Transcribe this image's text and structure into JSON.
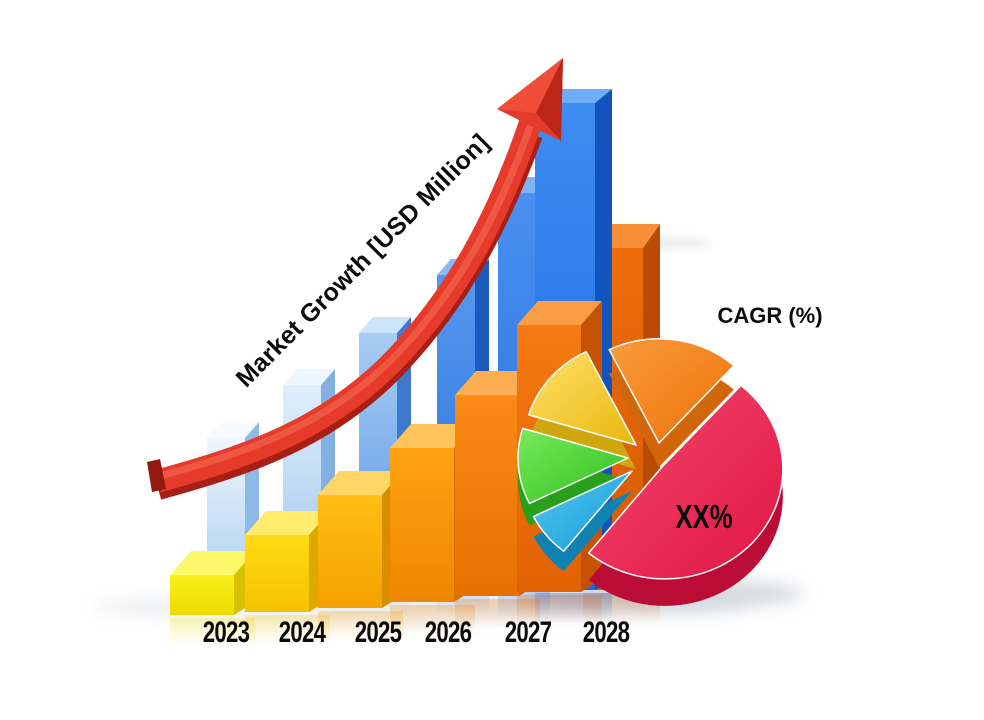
{
  "arrow": {
    "title": "Market Growth [USD Million]",
    "color_main": "#e63b2b",
    "color_dark": "#a81f15",
    "color_sheen": "#f0604a",
    "color_head_dark": "#bb2619",
    "color_head_light": "#ef4f38",
    "color_cap": "#93180f"
  },
  "pie": {
    "heading": "CAGR (%)",
    "center_label": "XX%"
  },
  "axis_years": [
    "2023",
    "2024",
    "2025",
    "2026",
    "2027",
    "2028"
  ],
  "palette": {
    "back_bars": [
      {
        "front": [
          "#eef6fd",
          "#b5d4f1"
        ],
        "side": "#8fb9e6",
        "top": "#f6fbff"
      },
      {
        "front": [
          "#e0eefb",
          "#a6c9ef"
        ],
        "side": "#83b0e2",
        "top": "#eef7fe"
      },
      {
        "front": [
          "#a8cdf4",
          "#5b97e4"
        ],
        "side": "#4079cc",
        "top": "#cde5fb"
      },
      {
        "front": [
          "#5598ee",
          "#2a71dc"
        ],
        "side": "#1d5abe",
        "top": "#8abaf5"
      },
      {
        "front": [
          "#4a90ef",
          "#2270e2"
        ],
        "side": "#1a58c0",
        "top": "#7fb3f6"
      },
      {
        "front": [
          "#3f8cf2",
          "#1b66dd"
        ],
        "side": "#1254bd",
        "top": "#6fadf7"
      }
    ],
    "front_bars": [
      {
        "front": [
          "#faf01c",
          "#efda00"
        ],
        "side": "#d8c100",
        "top": "#fdf76a"
      },
      {
        "front": [
          "#ffdb13",
          "#f6c200"
        ],
        "side": "#dda800",
        "top": "#ffeb6e"
      },
      {
        "front": [
          "#ffbf14",
          "#f4a100"
        ],
        "side": "#d98d00",
        "top": "#ffd666"
      },
      {
        "front": [
          "#ffa312",
          "#ef8600"
        ],
        "side": "#d47200",
        "top": "#ffc35c"
      },
      {
        "front": [
          "#fb8a16",
          "#e87000"
        ],
        "side": "#cd5f03",
        "top": "#fdae52"
      },
      {
        "front": [
          "#f67a12",
          "#e06100"
        ],
        "side": "#c65303",
        "top": "#f99e44"
      }
    ],
    "extra_bar": {
      "front": [
        "#ef6c0b",
        "#d55a02"
      ],
      "side": "#b84c02",
      "top": "#f68f38"
    },
    "pie_slices": {
      "red": {
        "grad": [
          "#f34a6d",
          "#e01545"
        ],
        "side": "#bb0c36"
      },
      "orange": {
        "grad": [
          "#f89b3c",
          "#ef7207"
        ],
        "side": "#d2660b"
      },
      "yellow": {
        "grad": [
          "#ffe26a",
          "#e9b60c"
        ],
        "side": "#d0a60e"
      },
      "green": {
        "grad": [
          "#7ae95c",
          "#2dbf1f"
        ],
        "side": "#28a01c"
      },
      "blue": {
        "grad": [
          "#55c8f0",
          "#149ad8"
        ],
        "side": "#1181b1"
      }
    }
  },
  "chart_data": [
    {
      "type": "bar",
      "title": "Market Growth [USD Million]",
      "categories": [
        "2023",
        "2024",
        "2025",
        "2026",
        "2027",
        "2028"
      ],
      "series": [
        {
          "name": "back-blue-bars",
          "unit": "relative-px-height",
          "values": [
            132,
            187,
            242,
            305,
            392,
            487
          ]
        },
        {
          "name": "front-orange-bars",
          "unit": "relative-px-height",
          "values": [
            40,
            77,
            113,
            154,
            201,
            267
          ]
        }
      ],
      "extra_bar": {
        "name": "rightmost-orange-bar",
        "value": 342
      },
      "note": "Illustrative 3D stock-style chart; no numeric axis values are shown in the image."
    },
    {
      "type": "pie",
      "title": "CAGR (%)",
      "slices": [
        {
          "name": "red",
          "pct": 49,
          "label": "XX%"
        },
        {
          "name": "orange",
          "pct": 19
        },
        {
          "name": "yellow",
          "pct": 13
        },
        {
          "name": "green",
          "pct": 12
        },
        {
          "name": "blue",
          "pct": 7
        }
      ],
      "note": "Slice percentages estimated from drawn angles; only XX% placeholder is labeled."
    }
  ]
}
